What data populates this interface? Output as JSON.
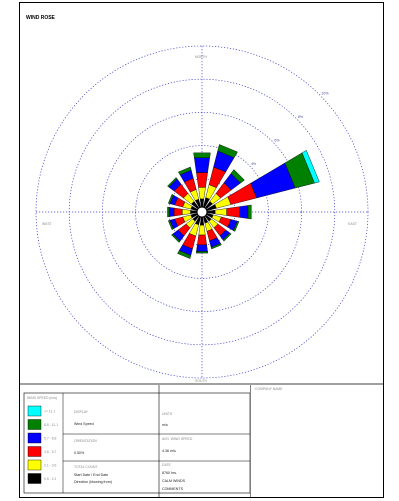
{
  "title": "WIND ROSE",
  "compass": {
    "north": "NORTH",
    "south": "SOUTH",
    "east": "EAST",
    "west": "WEST"
  },
  "colors": {
    "frame": "#000000",
    "grid": "#3a3ac8",
    "bins": [
      "#000000",
      "#ffff00",
      "#ff0000",
      "#0000ff",
      "#008000",
      "#00ffff"
    ]
  },
  "chart_data": {
    "type": "rose",
    "title": "",
    "directions": [
      "N",
      "NNE",
      "NE",
      "ENE",
      "E",
      "ESE",
      "SE",
      "SSE",
      "S",
      "SSW",
      "SW",
      "WSW",
      "W",
      "WNW",
      "NW",
      "NNW"
    ],
    "angles_deg": [
      0,
      22.5,
      45,
      67.5,
      90,
      112.5,
      135,
      157.5,
      180,
      202.5,
      225,
      247.5,
      270,
      292.5,
      315,
      337.5
    ],
    "rings_percent": [
      2,
      4,
      6,
      8,
      10
    ],
    "ring_labels": [
      "2%",
      "4%",
      "6%",
      "8%",
      "10%"
    ],
    "rmax_percent": 10,
    "grid": true,
    "legend_position": "bottom-left",
    "speed_bins": [
      "0.5 - 2.1",
      "2.1 - 3.6",
      "3.6 - 5.7",
      "5.7 - 8.8",
      "8.8 - 11.1",
      ">= 11.1"
    ],
    "frequencies": [
      [
        0.5,
        0.7,
        0.9,
        0.9,
        0.3,
        0.0
      ],
      [
        0.6,
        0.8,
        1.1,
        1.0,
        0.4,
        0.0
      ],
      [
        0.5,
        0.6,
        0.8,
        0.7,
        0.3,
        0.0
      ],
      [
        0.6,
        0.9,
        1.6,
        2.4,
        1.2,
        0.3
      ],
      [
        0.5,
        0.7,
        0.8,
        0.5,
        0.2,
        0.0
      ],
      [
        0.4,
        0.5,
        0.6,
        0.4,
        0.1,
        0.0
      ],
      [
        0.4,
        0.5,
        0.6,
        0.3,
        0.1,
        0.0
      ],
      [
        0.4,
        0.5,
        0.6,
        0.4,
        0.1,
        0.0
      ],
      [
        0.5,
        0.6,
        0.6,
        0.4,
        0.1,
        0.0
      ],
      [
        0.5,
        0.7,
        0.8,
        0.4,
        0.2,
        0.0
      ],
      [
        0.4,
        0.5,
        0.6,
        0.4,
        0.1,
        0.0
      ],
      [
        0.4,
        0.5,
        0.5,
        0.3,
        0.1,
        0.0
      ],
      [
        0.4,
        0.5,
        0.5,
        0.3,
        0.1,
        0.0
      ],
      [
        0.4,
        0.5,
        0.5,
        0.3,
        0.1,
        0.0
      ],
      [
        0.5,
        0.6,
        0.7,
        0.4,
        0.1,
        0.0
      ],
      [
        0.5,
        0.6,
        0.7,
        0.5,
        0.2,
        0.0
      ]
    ]
  },
  "legend": {
    "title": "WIND SPEED (m/s)",
    "bins": [
      "0.5 - 2.1",
      "2.1 - 3.6",
      "3.6 - 5.7",
      "5.7 - 8.8",
      "8.8 - 11.1",
      ">= 11.1"
    ]
  },
  "info": {
    "display_label": "DISPLAY",
    "display_value": "Wind Speed",
    "units_label": "UNITS",
    "units_value": "m/s",
    "calm_label": "CALM WINDS",
    "calm_value": "0.50%",
    "comments_label": "COMMENTS",
    "comments_value": "",
    "avg_label": "AVG. WIND SPEED",
    "avg_value": "4.36 m/s",
    "data_label": "DATA PERIOD",
    "data_value": "Start Date / End Date",
    "orientation_label": "ORIENTATION",
    "orientation_value": "Direction (blowing from)",
    "counts_label": "TOTAL COUNT",
    "counts_value": "8760 hrs.",
    "model_label": "COMPANY NAME",
    "model_value": "",
    "date_label": "DATE",
    "date_value": "",
    "project_label": "PROJECT NO.",
    "project_value": "",
    "modeler_label": "MODELER",
    "modeler_value": ""
  }
}
